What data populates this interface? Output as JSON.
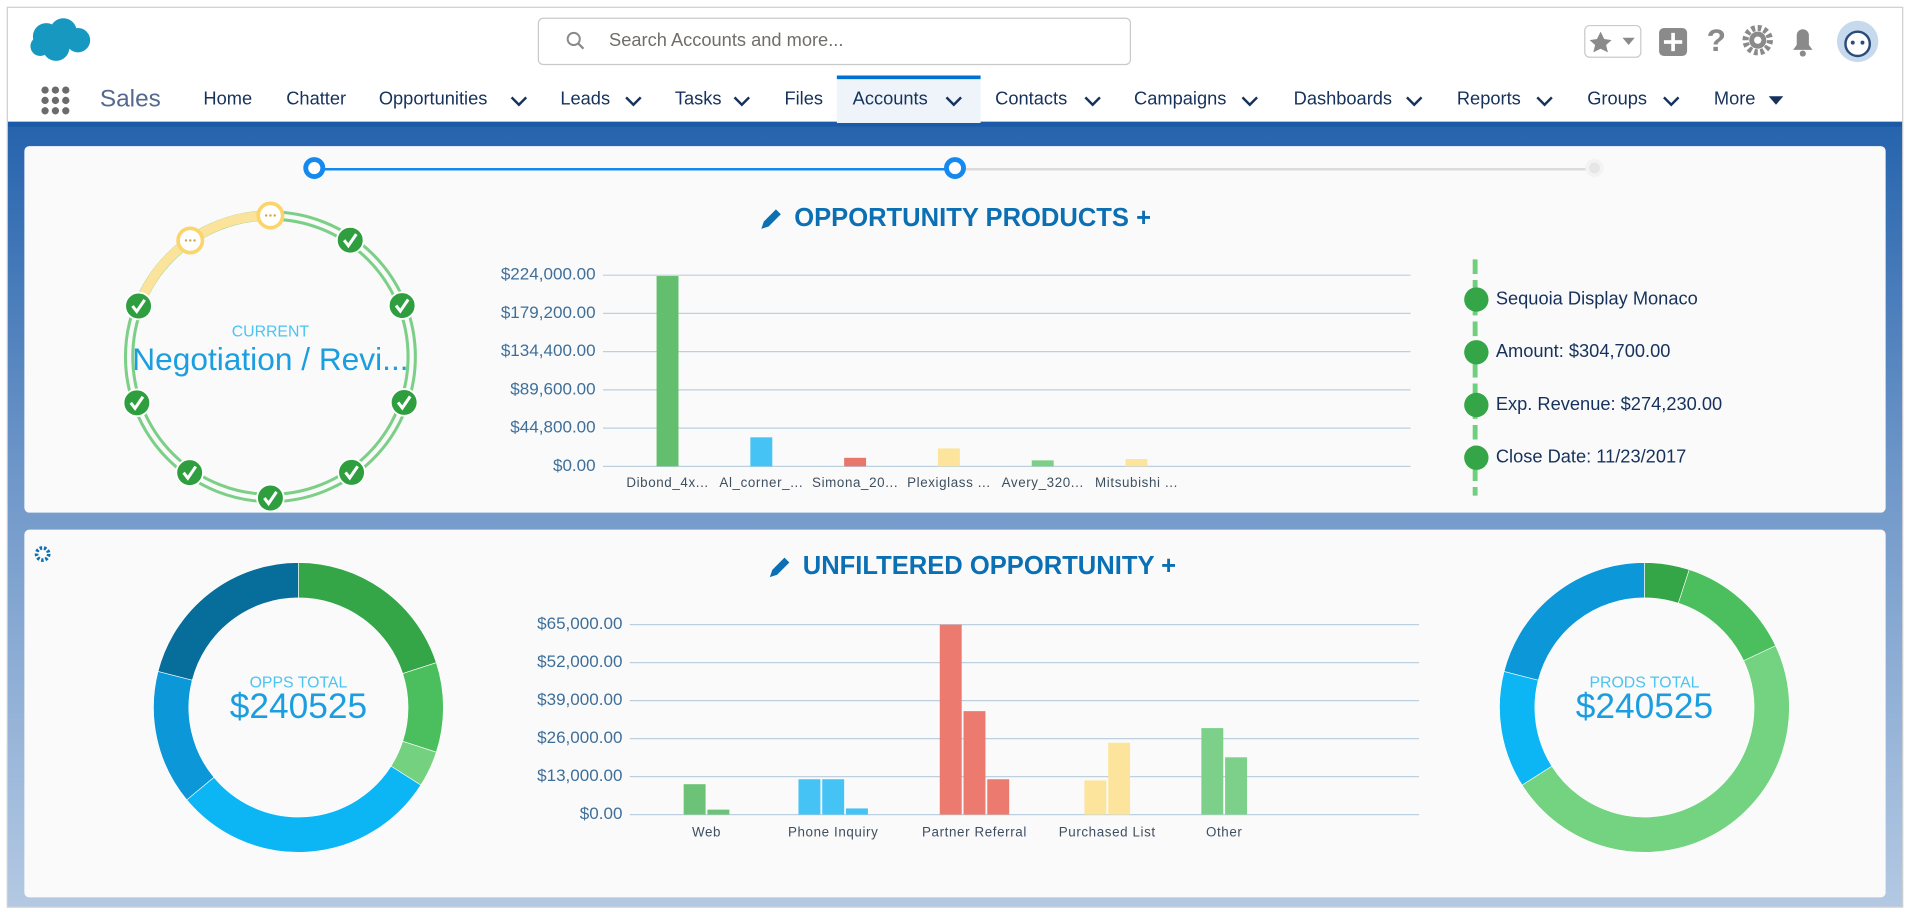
{
  "header": {
    "search_placeholder": "Search Accounts and more...",
    "app_name": "Sales",
    "nav": [
      {
        "label": "Home",
        "dropdown": false
      },
      {
        "label": "Chatter",
        "dropdown": false
      },
      {
        "label": "Opportunities",
        "dropdown": true
      },
      {
        "label": "Leads",
        "dropdown": true
      },
      {
        "label": "Tasks",
        "dropdown": true
      },
      {
        "label": "Files",
        "dropdown": false
      },
      {
        "label": "Accounts",
        "dropdown": true,
        "selected": true
      },
      {
        "label": "Contacts",
        "dropdown": true
      },
      {
        "label": "Campaigns",
        "dropdown": true
      },
      {
        "label": "Dashboards",
        "dropdown": true
      },
      {
        "label": "Reports",
        "dropdown": true
      },
      {
        "label": "Groups",
        "dropdown": true
      },
      {
        "label": "More",
        "dropdown": true
      }
    ]
  },
  "path": {
    "current_label": "CURRENT",
    "current_stage": "Negotiation / Revi..."
  },
  "products_chart": {
    "type": "bar",
    "title": "OPPORTUNITY PRODUCTS +",
    "categories": [
      "Dibond_4x...",
      "Al_corner_...",
      "Simona_20...",
      "Plexiglass ...",
      "Avery_320...",
      "Mitsubishi ..."
    ],
    "values": [
      223000,
      34000,
      10000,
      21000,
      7000,
      8500
    ],
    "colors": [
      "#63bf6e",
      "#46c3f5",
      "#e8766b",
      "#fde49d",
      "#7ccf86",
      "#fde49d"
    ],
    "ylim": [
      0,
      224000
    ],
    "yticks": [
      {
        "value": 0,
        "label": "$0.00"
      },
      {
        "value": 44800,
        "label": "$44,800.00"
      },
      {
        "value": 89600,
        "label": "$89,600.00"
      },
      {
        "value": 134400,
        "label": "$134,400.00"
      },
      {
        "value": 179200,
        "label": "$179,200.00"
      },
      {
        "value": 224000,
        "label": "$224,000.00"
      }
    ],
    "grid": true
  },
  "details": [
    "Sequoia Display Monaco",
    "Amount: $304,700.00",
    "Exp. Revenue: $274,230.00",
    "Close Date: 11/23/2017"
  ],
  "opportunity_chart": {
    "type": "grouped-bar",
    "title": "UNFILTERED OPPORTUNITY +",
    "groups": [
      {
        "name": "Web",
        "color": "#6cc276",
        "values": [
          10400,
          1700
        ]
      },
      {
        "name": "Phone Inquiry",
        "color": "#46c3f5",
        "values": [
          12100,
          12100,
          2100
        ]
      },
      {
        "name": "Partner Referral",
        "color": "#ec7a6e",
        "values": [
          65000,
          35400,
          12100
        ]
      },
      {
        "name": "Purchased List",
        "color": "#fde49d",
        "values": [
          11700,
          24600
        ]
      },
      {
        "name": "Other",
        "color": "#7dd08a",
        "values": [
          29600,
          19600
        ]
      }
    ],
    "ylim": [
      0,
      65000
    ],
    "yticks": [
      {
        "value": 0,
        "label": "$0.00"
      },
      {
        "value": 13000,
        "label": "$13,000.00"
      },
      {
        "value": 26000,
        "label": "$26,000.00"
      },
      {
        "value": 39000,
        "label": "$39,000.00"
      },
      {
        "value": 52000,
        "label": "$52,000.00"
      },
      {
        "value": 65000,
        "label": "$65,000.00"
      }
    ],
    "grid": true
  },
  "donuts": [
    {
      "type": "donut",
      "label": "OPPS TOTAL",
      "total": "$240525",
      "values": [
        20,
        10,
        4,
        30,
        15,
        21
      ],
      "colors": [
        "#34a647",
        "#4bbf5d",
        "#73d180",
        "#0cb6f5",
        "#0b97d8",
        "#076d9a"
      ]
    },
    {
      "type": "donut",
      "label": "PRODS TOTAL",
      "total": "$240525",
      "values": [
        5,
        13,
        48,
        13,
        21
      ],
      "colors": [
        "#34a647",
        "#4bbf5d",
        "#73d380",
        "#0cb6f5",
        "#0b97d8"
      ]
    }
  ]
}
